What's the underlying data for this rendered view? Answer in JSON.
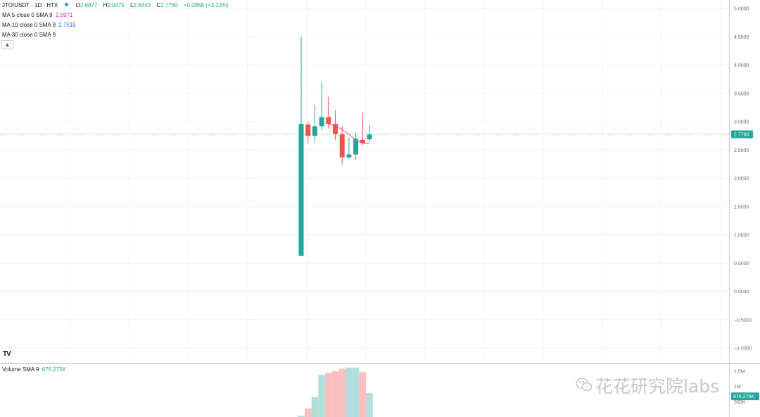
{
  "header": {
    "symbol": "JTO/USDT · 1D · HTX",
    "ohlc": {
      "o_label": "O",
      "o": "2.6877",
      "h_label": "H",
      "h": "2.9475",
      "l_label": "L",
      "l": "2.6443",
      "c_label": "C",
      "c": "2.7760",
      "change": "+0.0868 (+3.23%)"
    },
    "ma5": {
      "label": "MA 5 close 0 SMA 9",
      "value": "2.5971"
    },
    "ma10": {
      "label": "MA 10 close 0 SMA 9",
      "value": "2.7515"
    },
    "ma30": {
      "label": "MA 30 close 0 SMA 9"
    },
    "collapse_icon": "▲"
  },
  "volume_legend": {
    "label": "Volume SMA 9",
    "value": "676.275K"
  },
  "price_axis": {
    "ticks": [
      "5.0000",
      "4.5000",
      "4.0000",
      "3.5000",
      "3.0000",
      "2.5000",
      "2.0000",
      "1.5000",
      "1.0000",
      "0.5000",
      "0.0000",
      "−0.5000",
      "−1.0000"
    ],
    "current_price_label": "2.7760"
  },
  "volume_axis": {
    "ticks": [
      "1.5M",
      "1M",
      "500K"
    ],
    "current_label": "676.275K"
  },
  "logo_text": "TV",
  "watermark": {
    "icon": "wechat-icon",
    "text": "花花研究院labs"
  },
  "colors": {
    "up": "#26a69a",
    "down": "#ef5350",
    "vol_up": "#b2dfdb",
    "vol_down": "#f9c0bf",
    "ma": "#e05a74",
    "current_line": "#26a69a",
    "grid": "#f0f3fa"
  },
  "chart_data": {
    "type": "candlestick",
    "y_range": [
      -1.0,
      5.0
    ],
    "candles": [
      {
        "o": 0.63,
        "h": 4.5,
        "l": 0.63,
        "c": 2.96
      },
      {
        "o": 2.95,
        "h": 3.0,
        "l": 2.62,
        "c": 2.75
      },
      {
        "o": 2.75,
        "h": 3.3,
        "l": 2.62,
        "c": 2.92
      },
      {
        "o": 2.92,
        "h": 3.7,
        "l": 2.85,
        "c": 3.08
      },
      {
        "o": 3.08,
        "h": 3.44,
        "l": 2.88,
        "c": 2.96
      },
      {
        "o": 2.96,
        "h": 3.2,
        "l": 2.68,
        "c": 2.78
      },
      {
        "o": 2.78,
        "h": 2.92,
        "l": 2.24,
        "c": 2.37
      },
      {
        "o": 2.37,
        "h": 2.72,
        "l": 2.34,
        "c": 2.42
      },
      {
        "o": 2.42,
        "h": 2.8,
        "l": 2.32,
        "c": 2.7
      },
      {
        "o": 2.68,
        "h": 3.15,
        "l": 2.58,
        "c": 2.62
      },
      {
        "o": 2.6877,
        "h": 2.9475,
        "l": 2.6443,
        "c": 2.776
      }
    ],
    "ma_line": [
      null,
      null,
      null,
      null,
      2.95,
      2.93,
      2.86,
      2.78,
      2.67,
      2.62,
      2.61
    ],
    "volume": {
      "range": [
        0,
        1750000
      ],
      "values": [
        40000,
        280000,
        650000,
        1380000,
        1450000,
        1500000,
        1580000,
        1620000,
        1620000,
        1470000,
        780000
      ],
      "up": [
        true,
        false,
        true,
        true,
        false,
        false,
        false,
        true,
        true,
        false,
        true
      ]
    },
    "current_price": 2.776
  }
}
